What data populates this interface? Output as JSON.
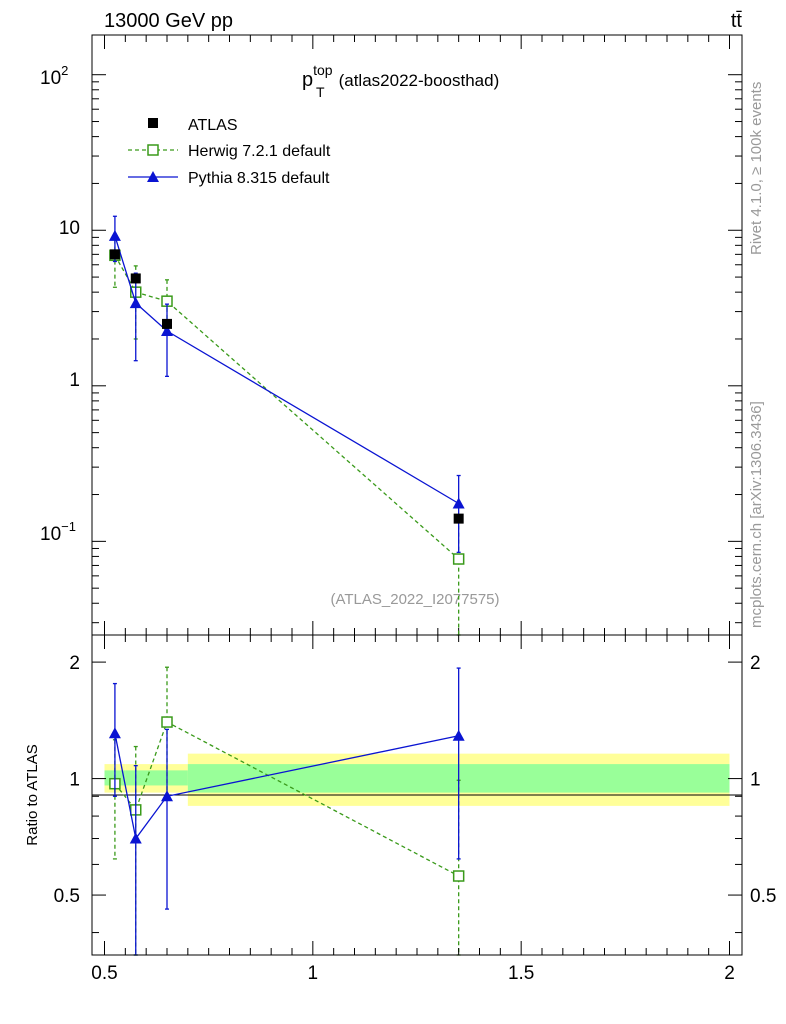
{
  "header": {
    "left": "13000 GeV pp",
    "right": "tt̄"
  },
  "side_texts": {
    "rivet": "Rivet 4.1.0, ≥ 100k events",
    "mcplots": "mcplots.cern.ch [arXiv:1306.3436]"
  },
  "colors": {
    "data": "#000000",
    "herwig": "#3a9a1a",
    "pythia": "#0a14d2",
    "band_inner": "#99ff99",
    "band_outer": "#ffff99",
    "watermark": "#999999"
  },
  "chart_data": [
    {
      "type": "scatter",
      "title_main": "p",
      "title_sup": "top",
      "title_sub": "T",
      "title_suffix": "(atlas2022-boosthad)",
      "watermark": "(ATLAS_2022_I2077575)",
      "yscale": "log",
      "ylim": [
        0.025,
        180
      ],
      "xlim": [
        0.47,
        2.03
      ],
      "y_tick_labels": {
        "t100": "10",
        "t100_sup": "2",
        "t10": "10",
        "t1": "1",
        "t01": "10",
        "t01_sup": "−1"
      },
      "legend_position": "top-left",
      "series": [
        {
          "name": "ATLAS",
          "marker": "filled-square",
          "x": [
            0.525,
            0.575,
            0.65,
            1.35
          ],
          "y": [
            7.0,
            4.9,
            2.5,
            0.14
          ],
          "yerr_low": [
            0.3,
            0.2,
            0.1,
            0.005
          ],
          "yerr_high": [
            0.3,
            0.2,
            0.1,
            0.005
          ]
        },
        {
          "name": "Herwig 7.2.1 default",
          "marker": "open-square",
          "line": "dashed",
          "x": [
            0.525,
            0.575,
            0.65,
            1.35
          ],
          "y": [
            6.9,
            4.0,
            3.5,
            0.077
          ],
          "y_low": [
            4.3,
            2.0,
            2.2,
            0.018
          ],
          "y_high": [
            8.7,
            5.9,
            4.8,
            0.14
          ]
        },
        {
          "name": "Pythia 8.315 default",
          "marker": "filled-triangle",
          "line": "solid",
          "x": [
            0.525,
            0.575,
            0.65,
            1.35
          ],
          "y": [
            9.2,
            3.4,
            2.25,
            0.175
          ],
          "y_low": [
            6.3,
            1.45,
            1.15,
            0.085
          ],
          "y_high": [
            12.3,
            5.3,
            3.35,
            0.265
          ]
        }
      ]
    },
    {
      "type": "scatter",
      "ylabel": "Ratio to ATLAS",
      "xlim": [
        0.47,
        2.03
      ],
      "ylim": [
        0.35,
        2.35
      ],
      "x_ticks": [
        0.5,
        1,
        1.5,
        2
      ],
      "x_tick_labels": [
        "0.5",
        "1",
        "1.5",
        "2"
      ],
      "y_ticks": [
        0.5,
        1,
        2
      ],
      "y_tick_labels": [
        "0.5",
        "1",
        "2"
      ],
      "band_bins": [
        {
          "x0": 0.5,
          "x1": 0.55,
          "inner_low": 0.96,
          "inner_high": 1.05,
          "outer_low": 0.92,
          "outer_high": 1.09
        },
        {
          "x0": 0.55,
          "x1": 0.7,
          "inner_low": 0.96,
          "inner_high": 1.05,
          "outer_low": 0.92,
          "outer_high": 1.09
        },
        {
          "x0": 0.7,
          "x1": 2.0,
          "inner_low": 0.92,
          "inner_high": 1.09,
          "outer_low": 0.85,
          "outer_high": 1.16
        }
      ],
      "series": [
        {
          "name": "Herwig 7.2.1 default",
          "x": [
            0.525,
            0.575,
            0.65,
            1.35
          ],
          "y": [
            0.97,
            0.83,
            1.4,
            0.56
          ],
          "y_low": [
            0.62,
            0.34,
            0.9,
            0.13
          ],
          "y_high": [
            1.26,
            1.21,
            1.94,
            0.99
          ]
        },
        {
          "name": "Pythia 8.315 default",
          "x": [
            0.525,
            0.575,
            0.65,
            1.35
          ],
          "y": [
            1.31,
            0.7,
            0.9,
            1.29
          ],
          "y_low": [
            0.9,
            0.3,
            0.46,
            0.62
          ],
          "y_high": [
            1.76,
            1.08,
            1.34,
            1.93
          ]
        }
      ]
    }
  ]
}
